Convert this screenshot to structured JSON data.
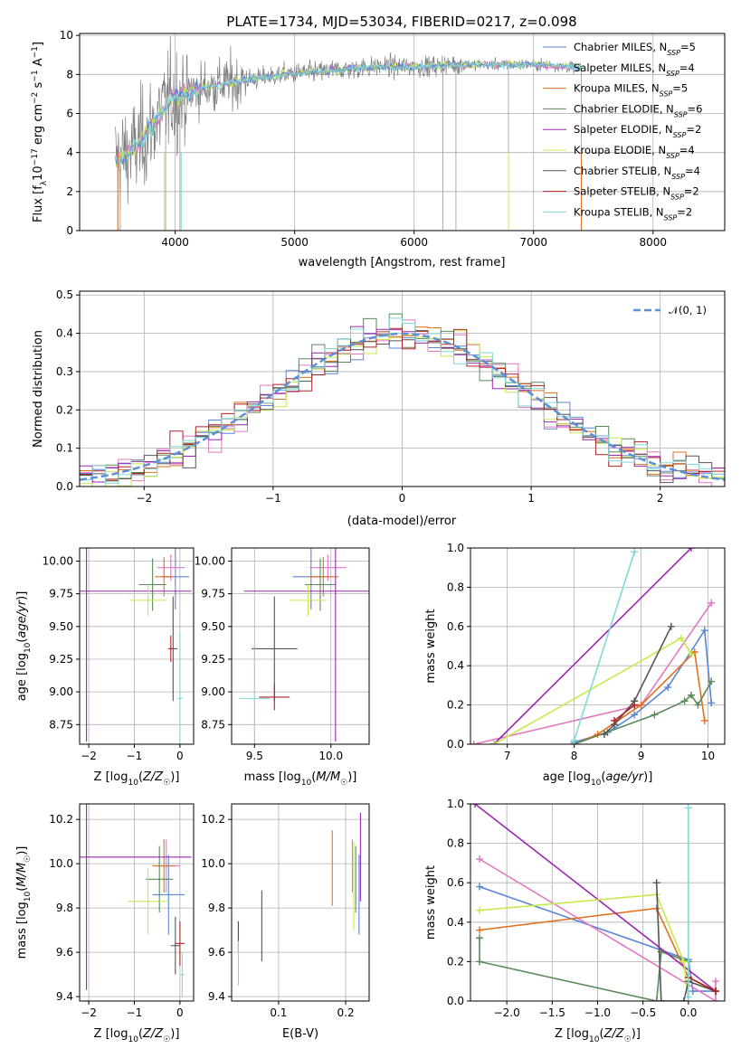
{
  "colors": {
    "chab_miles": "#5b86d6",
    "salp_miles": "#e377c2",
    "krou_miles": "#e07020",
    "chab_elodie": "#5a8a5a",
    "salp_elodie": "#9b27b0",
    "krou_elodie": "#c8e84b",
    "chab_stelib": "#555555",
    "salp_stelib": "#b22222",
    "krou_stelib": "#80d8d8"
  },
  "chart_data": [
    {
      "id": "spectrum",
      "type": "line",
      "title": "PLATE=1734, MJD=53034, FIBERID=0217, z=0.098",
      "xlabel": "wavelength [Angstrom, rest frame]",
      "ylabel": "Flux [f_λ10^-17 erg cm^-2 s^-1 A^-1]",
      "xlim": [
        3200,
        8600
      ],
      "ylim": [
        0,
        10.1
      ],
      "xticks": [
        4000,
        5000,
        6000,
        7000,
        8000
      ],
      "yticks": [
        0,
        2,
        4,
        6,
        8,
        10
      ],
      "continuum": {
        "x": [
          3500,
          3650,
          3800,
          3950,
          4100,
          4300,
          4500,
          4700,
          4900,
          5100,
          5300,
          5500,
          5700,
          5900,
          6100,
          6300,
          6500,
          6700,
          6900,
          7100,
          7300,
          7400
        ],
        "y": [
          3.6,
          4.1,
          5.3,
          6.7,
          7.1,
          7.4,
          7.6,
          7.8,
          8.0,
          8.1,
          8.2,
          8.3,
          8.4,
          8.4,
          8.4,
          8.5,
          8.5,
          8.5,
          8.5,
          8.5,
          8.4,
          8.3
        ]
      },
      "legend": [
        {
          "label": "Chabrier MILES, N_SSP=5",
          "color_key": "chab_miles"
        },
        {
          "label": "Salpeter MILES, N_SSP=4",
          "color_key": "salp_miles"
        },
        {
          "label": "Kroupa MILES, N_SSP=5",
          "color_key": "krou_miles"
        },
        {
          "label": "Chabrier ELODIE, N_SSP=6",
          "color_key": "chab_elodie"
        },
        {
          "label": "Salpeter ELODIE, N_SSP=2",
          "color_key": "salp_elodie"
        },
        {
          "label": "Kroupa ELODIE, N_SSP=4",
          "color_key": "krou_elodie"
        },
        {
          "label": "Chabrier STELIB, N_SSP=4",
          "color_key": "chab_stelib"
        },
        {
          "label": "Salpeter STELIB, N_SSP=2",
          "color_key": "salp_stelib"
        },
        {
          "label": "Kroupa STELIB, N_SSP=2",
          "color_key": "krou_stelib"
        }
      ]
    },
    {
      "id": "residuals",
      "type": "histogram",
      "xlabel": "(data-model)/error",
      "ylabel": "Normed distribution",
      "xlim": [
        -2.5,
        2.5
      ],
      "ylim": [
        0,
        0.51
      ],
      "xticks": [
        -2,
        -1,
        0,
        1,
        2
      ],
      "yticks": [
        0.0,
        0.1,
        0.2,
        0.3,
        0.4,
        0.5
      ],
      "bin_width": 0.1,
      "legend_label": "𝒩(0, 1)",
      "dashed_color": "#5b8fd6"
    },
    {
      "id": "age_vs_Z",
      "type": "errorbar",
      "xlabel": "Z [log10(Z/Z☉)]",
      "ylabel": "age [log10(age/yr)]",
      "xlim": [
        -2.2,
        0.3
      ],
      "ylim": [
        8.6,
        10.1
      ],
      "xticks": [
        -2,
        -1,
        0
      ],
      "yticks": [
        8.75,
        9.0,
        9.25,
        9.5,
        9.75,
        10.0
      ],
      "points": [
        {
          "c": "chab_miles",
          "x": -0.1,
          "y": 9.88,
          "xe": 0.3,
          "ye": 0.25
        },
        {
          "c": "salp_miles",
          "x": -0.2,
          "y": 9.95,
          "xe": 0.3,
          "ye": 0.1
        },
        {
          "c": "krou_miles",
          "x": -0.35,
          "y": 9.88,
          "xe": 0.2,
          "ye": 0.15
        },
        {
          "c": "chab_elodie",
          "x": -0.6,
          "y": 9.82,
          "xe": 0.3,
          "ye": 0.2
        },
        {
          "c": "salp_elodie",
          "x": -2.05,
          "y": 9.77,
          "xe": 2.3,
          "ye": 1.15
        },
        {
          "c": "krou_elodie",
          "x": -0.7,
          "y": 9.7,
          "xe": 0.4,
          "ye": 0.12
        },
        {
          "c": "chab_stelib",
          "x": -0.15,
          "y": 9.33,
          "xe": 0.1,
          "ye": 0.4
        },
        {
          "c": "salp_stelib",
          "x": -0.2,
          "y": 9.33,
          "xe": 0.05,
          "ye": 0.1
        },
        {
          "c": "krou_stelib",
          "x": 0.0,
          "y": 8.95,
          "xe": 0.05,
          "ye": 0.5
        }
      ]
    },
    {
      "id": "age_vs_mass",
      "type": "errorbar",
      "xlabel": "mass [log10(M/M☉)]",
      "ylabel": "",
      "xlim": [
        9.35,
        10.25
      ],
      "ylim": [
        8.6,
        10.1
      ],
      "xticks": [
        9.5,
        10.0
      ],
      "yticks": [
        8.75,
        9.0,
        9.25,
        9.5,
        9.75,
        10.0
      ],
      "points": [
        {
          "c": "chab_miles",
          "x": 9.87,
          "y": 9.88,
          "xe": 0.12,
          "ye": 0.25
        },
        {
          "c": "salp_miles",
          "x": 9.98,
          "y": 9.95,
          "xe": 0.12,
          "ye": 0.1
        },
        {
          "c": "krou_miles",
          "x": 9.95,
          "y": 9.88,
          "xe": 0.1,
          "ye": 0.15
        },
        {
          "c": "chab_elodie",
          "x": 9.93,
          "y": 9.82,
          "xe": 0.1,
          "ye": 0.2
        },
        {
          "c": "salp_elodie",
          "x": 10.03,
          "y": 9.77,
          "xe": 0.6,
          "ye": 1.15
        },
        {
          "c": "krou_elodie",
          "x": 9.85,
          "y": 9.7,
          "xe": 0.12,
          "ye": 0.12
        },
        {
          "c": "chab_stelib",
          "x": 9.63,
          "y": 9.33,
          "xe": 0.15,
          "ye": 0.4
        },
        {
          "c": "salp_stelib",
          "x": 9.63,
          "y": 8.96,
          "xe": 0.1,
          "ye": 0.1
        },
        {
          "c": "krou_stelib",
          "x": 9.5,
          "y": 8.95,
          "xe": 0.1,
          "ye": 0.4
        }
      ]
    },
    {
      "id": "weight_vs_age",
      "type": "line",
      "xlabel": "age [log10(age/yr)]",
      "ylabel": "mass weight",
      "xlim": [
        6.45,
        10.25
      ],
      "ylim": [
        0,
        1.0
      ],
      "xticks": [
        7,
        8,
        9,
        10
      ],
      "yticks": [
        0.0,
        0.2,
        0.4,
        0.6,
        0.8,
        1.0
      ],
      "series": [
        {
          "c": "chab_miles",
          "x": [
            8.0,
            8.5,
            8.9,
            9.4,
            9.95,
            10.05
          ],
          "y": [
            0.01,
            0.06,
            0.15,
            0.29,
            0.58,
            0.21
          ]
        },
        {
          "c": "salp_miles",
          "x": [
            6.5,
            9.0,
            10.05
          ],
          "y": [
            0.0,
            0.2,
            0.72
          ]
        },
        {
          "c": "krou_miles",
          "x": [
            8.0,
            8.35,
            9.0,
            9.8,
            9.95
          ],
          "y": [
            0.0,
            0.05,
            0.2,
            0.47,
            0.12
          ]
        },
        {
          "c": "chab_elodie",
          "x": [
            8.0,
            9.2,
            9.65,
            9.75,
            9.85,
            10.05
          ],
          "y": [
            0.0,
            0.15,
            0.22,
            0.25,
            0.2,
            0.32
          ]
        },
        {
          "c": "salp_elodie",
          "x": [
            6.8,
            9.75
          ],
          "y": [
            0.0,
            1.0
          ]
        },
        {
          "c": "krou_elodie",
          "x": [
            6.8,
            9.6,
            9.75
          ],
          "y": [
            0.0,
            0.54,
            0.46
          ]
        },
        {
          "c": "chab_stelib",
          "x": [
            8.45,
            8.6,
            8.9,
            9.45
          ],
          "y": [
            0.05,
            0.1,
            0.22,
            0.6
          ]
        },
        {
          "c": "salp_stelib",
          "x": [
            8.6,
            8.9
          ],
          "y": [
            0.12,
            0.2
          ]
        },
        {
          "c": "krou_stelib",
          "x": [
            8.0,
            8.9
          ],
          "y": [
            0.02,
            0.98
          ]
        }
      ]
    },
    {
      "id": "mass_vs_Z",
      "type": "errorbar",
      "xlabel": "Z [log10(Z/Z☉)]",
      "ylabel": "mass [log10(M/M☉)]",
      "xlim": [
        -2.2,
        0.3
      ],
      "ylim": [
        9.38,
        10.27
      ],
      "xticks": [
        -2,
        -1,
        0
      ],
      "yticks": [
        9.4,
        9.6,
        9.8,
        10.0,
        10.2
      ],
      "points": [
        {
          "c": "chab_miles",
          "x": -0.25,
          "y": 9.86,
          "xe": 0.35,
          "ye": 0.18
        },
        {
          "c": "salp_miles",
          "x": -0.3,
          "y": 9.99,
          "xe": 0.3,
          "ye": 0.12
        },
        {
          "c": "krou_miles",
          "x": -0.35,
          "y": 9.99,
          "xe": 0.25,
          "ye": 0.12
        },
        {
          "c": "chab_elodie",
          "x": -0.45,
          "y": 9.93,
          "xe": 0.3,
          "ye": 0.15
        },
        {
          "c": "salp_elodie",
          "x": -2.05,
          "y": 10.03,
          "xe": 2.3,
          "ye": 0.6
        },
        {
          "c": "krou_elodie",
          "x": -0.7,
          "y": 9.83,
          "xe": 0.45,
          "ye": 0.15
        },
        {
          "c": "chab_stelib",
          "x": -0.1,
          "y": 9.63,
          "xe": 0.1,
          "ye": 0.13
        },
        {
          "c": "salp_stelib",
          "x": 0.0,
          "y": 9.64,
          "xe": 0.1,
          "ye": 0.1
        },
        {
          "c": "krou_stelib",
          "x": 0.05,
          "y": 9.5,
          "xe": 0.05,
          "ye": 0.1
        }
      ]
    },
    {
      "id": "mass_vs_ebv",
      "type": "errorbar",
      "xlabel": "E(B-V)",
      "ylabel": "",
      "xlim": [
        0.03,
        0.235
      ],
      "ylim": [
        9.38,
        10.27
      ],
      "xticks": [
        0.1,
        0.2
      ],
      "yticks": [
        9.4,
        9.6,
        9.8,
        10.0,
        10.2
      ],
      "points": [
        {
          "c": "chab_miles",
          "x": 0.22,
          "y": 9.86,
          "xe": 0,
          "ye": 0.18
        },
        {
          "c": "salp_miles",
          "x": 0.21,
          "y": 9.99,
          "xe": 0,
          "ye": 0.12
        },
        {
          "c": "krou_miles",
          "x": 0.18,
          "y": 9.98,
          "xe": 0,
          "ye": 0.17
        },
        {
          "c": "chab_elodie",
          "x": 0.215,
          "y": 9.93,
          "xe": 0,
          "ye": 0.15
        },
        {
          "c": "salp_elodie",
          "x": 0.222,
          "y": 10.03,
          "xe": 0,
          "ye": 0.2
        },
        {
          "c": "krou_elodie",
          "x": 0.212,
          "y": 9.9,
          "xe": 0,
          "ye": 0.2
        },
        {
          "c": "chab_stelib",
          "x": 0.075,
          "y": 9.72,
          "xe": 0,
          "ye": 0.16
        },
        {
          "c": "salp_stelib",
          "x": 0.04,
          "y": 9.67,
          "xe": 0,
          "ye": 0.07
        },
        {
          "c": "krou_stelib",
          "x": 0.04,
          "y": 9.55,
          "xe": 0,
          "ye": 0.1
        }
      ]
    },
    {
      "id": "weight_vs_Z",
      "type": "line",
      "xlabel": "Z [log10(Z/Z☉)]",
      "ylabel": "mass weight",
      "xlim": [
        -2.4,
        0.4
      ],
      "ylim": [
        0,
        1.0
      ],
      "xticks": [
        -2.0,
        -1.5,
        -1.0,
        -0.5,
        0.0
      ],
      "yticks": [
        0.0,
        0.2,
        0.4,
        0.6,
        0.8,
        1.0
      ],
      "series": [
        {
          "c": "chab_miles",
          "x": [
            -2.3,
            0.0,
            0.05,
            0.3
          ],
          "y": [
            0.58,
            0.21,
            0.05,
            0.05
          ]
        },
        {
          "c": "salp_miles",
          "x": [
            -2.3,
            0.3,
            0.3
          ],
          "y": [
            0.72,
            0.0,
            0.1
          ]
        },
        {
          "c": "krou_miles",
          "x": [
            -2.3,
            -0.35,
            0.0,
            0.3
          ],
          "y": [
            0.36,
            0.47,
            0.12,
            0.05
          ]
        },
        {
          "c": "chab_elodie",
          "x": [
            -2.3,
            -2.3,
            -0.35,
            -0.3,
            0.0
          ],
          "y": [
            0.32,
            0.2,
            0.0,
            0.25,
            0.2
          ]
        },
        {
          "c": "salp_elodie",
          "x": [
            -2.35,
            0.3
          ],
          "y": [
            1.0,
            0.05
          ]
        },
        {
          "c": "krou_elodie",
          "x": [
            -2.3,
            -0.35,
            -0.05,
            0.0
          ],
          "y": [
            0.46,
            0.54,
            0.2,
            0.0
          ]
        },
        {
          "c": "chab_stelib",
          "x": [
            -0.35,
            -0.3,
            -0.05,
            0.0,
            0.3
          ],
          "y": [
            0.6,
            0.0,
            0.0,
            0.1,
            0.05
          ]
        },
        {
          "c": "salp_stelib",
          "x": [
            0.0,
            0.3
          ],
          "y": [
            0.12,
            0.05
          ]
        },
        {
          "c": "krou_stelib",
          "x": [
            0.0,
            0.0
          ],
          "y": [
            0.02,
            0.98
          ]
        }
      ]
    }
  ]
}
